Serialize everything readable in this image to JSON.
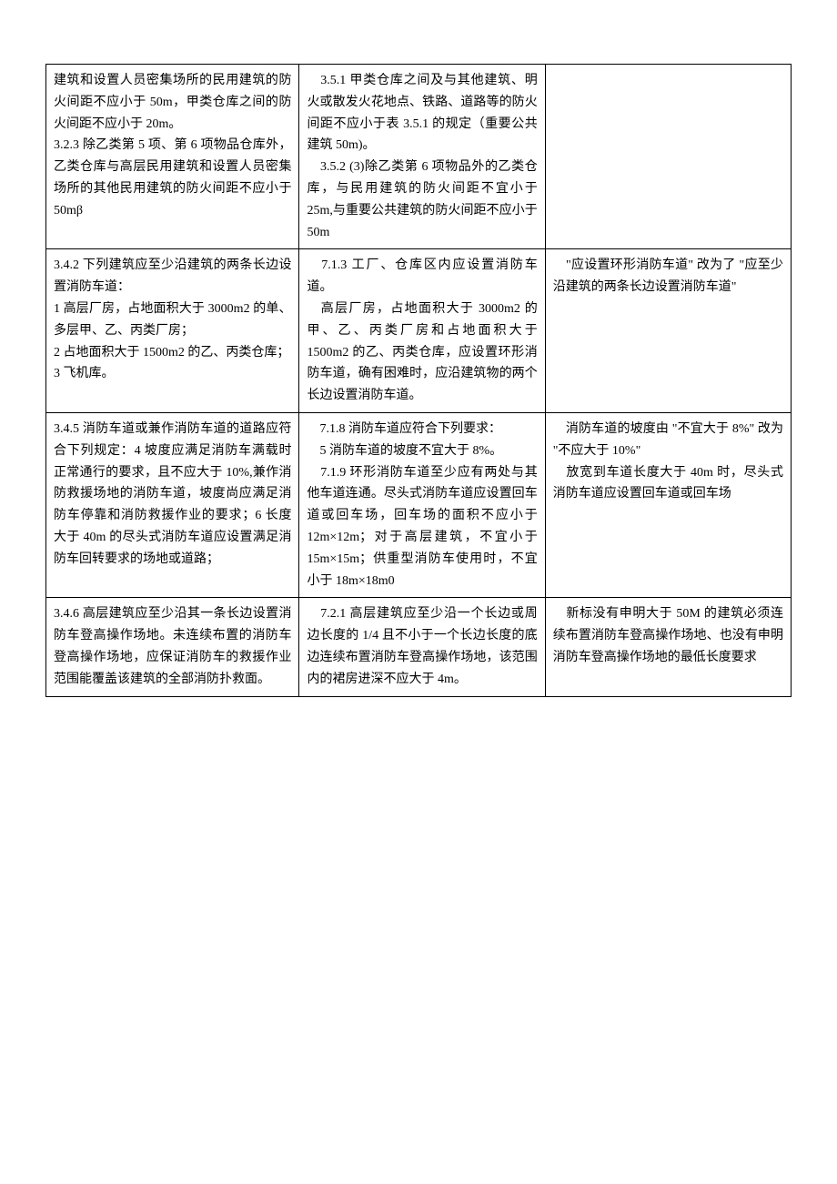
{
  "table": {
    "rows": [
      {
        "col1": "建筑和设置人员密集场所的民用建筑的防火间距不应小于 50m，甲类仓库之间的防火间距不应小于 20m。\n3.2.3 除乙类第 5 项、第 6 项物品仓库外，乙类仓库与高层民用建筑和设置人员密集场所的其他民用建筑的防火间距不应小于 50mβ",
        "col2": "　3.5.1 甲类仓库之间及与其他建筑、明火或散发火花地点、铁路、道路等的防火间距不应小于表 3.5.1 的规定（重要公共建筑 50m)。\n　3.5.2 (3)除乙类第 6 项物品外的乙类仓库，与民用建筑的防火间距不宜小于 25m,与重要公共建筑的防火间距不应小于 50m",
        "col3": ""
      },
      {
        "col1": "3.4.2 下列建筑应至少沿建筑的两条长边设置消防车道：\n1 高层厂房，占地面积大于 3000m2 的单、多层甲、乙、丙类厂房；\n2 占地面积大于 1500m2 的乙、丙类仓库；\n3 飞机库。",
        "col2": "　7.1.3 工厂、仓库区内应设置消防车道。\n　高层厂房，占地面积大于 3000m2 的甲、乙、丙类厂房和占地面积大于 1500m2 的乙、丙类仓库，应设置环形消防车道，确有困难时，应沿建筑物的两个长边设置消防车道。",
        "col3": "　\"应设置环形消防车道\" 改为了 \"应至少沿建筑的两条长边设置消防车道\""
      },
      {
        "col1": "3.4.5 消防车道或兼作消防车道的道路应符合下列规定：4 坡度应满足消防车满载时正常通行的要求，且不应大于 10%,兼作消防救援场地的消防车道，坡度尚应满足消防车停靠和消防救援作业的要求；6 长度大于 40m 的尽头式消防车道应设置满足消防车回转要求的场地或道路；",
        "col2": "　7.1.8 消防车道应符合下列要求：\n　5 消防车道的坡度不宜大于 8%。\n　7.1.9 环形消防车道至少应有两处与其他车道连通。尽头式消防车道应设置回车道或回车场，回车场的面积不应小于 12m×12m；对于高层建筑，不宜小于 15m×15m；供重型消防车使用时，不宜小于 18m×18m0",
        "col3": "　消防车道的坡度由 \"不宜大于 8%\" 改为 \"不应大于 10%\"\n　放宽到车道长度大于 40m 时，尽头式消防车道应设置回车道或回车场"
      },
      {
        "col1": "3.4.6 高层建筑应至少沿其一条长边设置消防车登高操作场地。未连续布置的消防车登高操作场地，应保证消防车的救援作业范围能覆盖该建筑的全部消防扑救面。",
        "col2": "　7.2.1 高层建筑应至少沿一个长边或周边长度的 1/4 且不小于一个长边长度的底边连续布置消防车登高操作场地，该范围内的裙房进深不应大于 4m。",
        "col3": "　新标没有申明大于 50M 的建筑必须连续布置消防车登高操作场地、也没有申明消防车登高操作场地的最低长度要求"
      }
    ]
  },
  "styling": {
    "font_family": "SimSun",
    "font_size_pt": 14,
    "line_height": 1.7,
    "text_color": "#000000",
    "background_color": "#ffffff",
    "border_color": "#000000",
    "border_width": 1,
    "padding_body": "70px 50px",
    "cell_padding": "6px 8px",
    "column_widths": [
      "34%",
      "33%",
      "33%"
    ]
  }
}
